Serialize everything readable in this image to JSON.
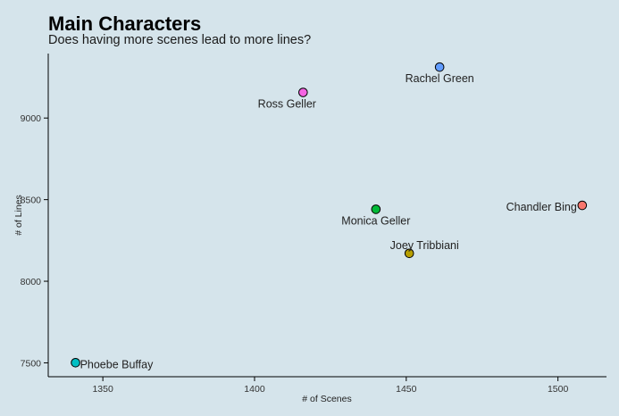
{
  "chart_data": {
    "type": "scatter",
    "title": "Main Characters",
    "subtitle": "Does having more scenes lead to more lines?",
    "xlabel": "# of Scenes",
    "ylabel": "# of Lines",
    "xlim": [
      1332,
      1516
    ],
    "ylim": [
      7415,
      9395
    ],
    "xticks": [
      1350,
      1400,
      1450,
      1500
    ],
    "yticks": [
      7500,
      8000,
      8500,
      9000
    ],
    "grid": false,
    "legend": "none",
    "points": [
      {
        "label": "Rachel Green",
        "x": 1461,
        "y": 9312,
        "color": "#619cff",
        "label_pos": "below"
      },
      {
        "label": "Ross Geller",
        "x": 1416,
        "y": 9157,
        "color": "#f564e3",
        "label_pos": "below-left"
      },
      {
        "label": "Chandler Bing",
        "x": 1508,
        "y": 8465,
        "color": "#f8766d",
        "label_pos": "left"
      },
      {
        "label": "Monica Geller",
        "x": 1440,
        "y": 8441,
        "color": "#00ba38",
        "label_pos": "below"
      },
      {
        "label": "Joey Tribbiani",
        "x": 1451,
        "y": 8171,
        "color": "#b79f00",
        "label_pos": "above"
      },
      {
        "label": "Phoebe Buffay",
        "x": 1341,
        "y": 7501,
        "color": "#00bfc4",
        "label_pos": "right"
      }
    ]
  }
}
